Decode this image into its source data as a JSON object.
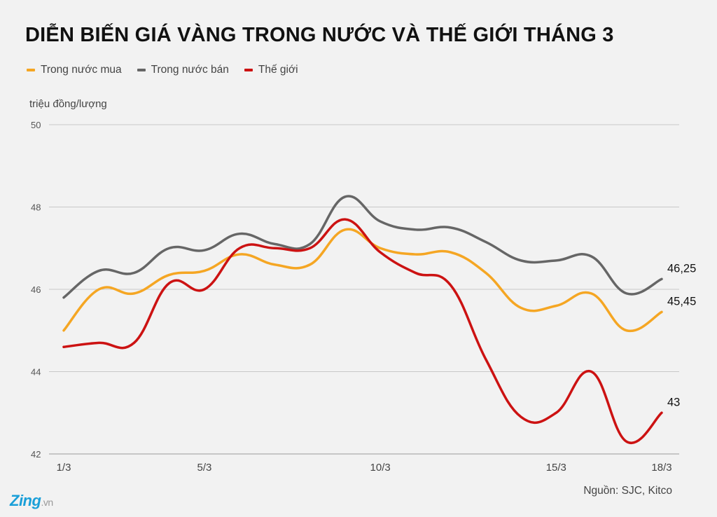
{
  "chart_data": {
    "type": "line",
    "title": "DIỄN BIẾN GIÁ VÀNG TRONG NƯỚC VÀ THẾ GIỚI THÁNG 3",
    "ylabel": "triệu đồng/lượng",
    "xlabel": "",
    "x": [
      "1/3",
      "2/3",
      "3/3",
      "4/3",
      "5/3",
      "6/3",
      "7/3",
      "8/3",
      "9/3",
      "10/3",
      "11/3",
      "12/3",
      "13/3",
      "14/3",
      "15/3",
      "16/3",
      "17/3",
      "18/3"
    ],
    "x_tick_labels": [
      "1/3",
      "5/3",
      "10/3",
      "15/3",
      "18/3"
    ],
    "ylim": [
      42,
      50
    ],
    "y_ticks": [
      42,
      44,
      46,
      48,
      50
    ],
    "grid": true,
    "legend_position": "top-left",
    "series": [
      {
        "name": "Trong nước mua",
        "color": "#f5a623",
        "values": [
          45.0,
          46.0,
          45.9,
          46.35,
          46.45,
          46.85,
          46.6,
          46.6,
          47.45,
          47.0,
          46.85,
          46.9,
          46.4,
          45.55,
          45.6,
          45.9,
          45.0,
          45.45
        ]
      },
      {
        "name": "Trong nước bán",
        "color": "#666666",
        "values": [
          45.8,
          46.45,
          46.4,
          47.0,
          46.95,
          47.35,
          47.1,
          47.1,
          48.25,
          47.65,
          47.45,
          47.5,
          47.15,
          46.7,
          46.7,
          46.8,
          45.9,
          46.25
        ]
      },
      {
        "name": "Thế giới",
        "color": "#cc1212",
        "values": [
          44.6,
          44.7,
          44.7,
          46.15,
          46.0,
          47.0,
          47.0,
          47.0,
          47.7,
          46.9,
          46.4,
          46.1,
          44.3,
          42.9,
          43.0,
          44.0,
          42.3,
          43.0
        ]
      }
    ],
    "end_labels": [
      "46,25",
      "45,45",
      "43"
    ],
    "source": "Nguồn: SJC, Kitco"
  },
  "branding": {
    "logo": "Zing",
    "logo_suffix": ".vn"
  }
}
